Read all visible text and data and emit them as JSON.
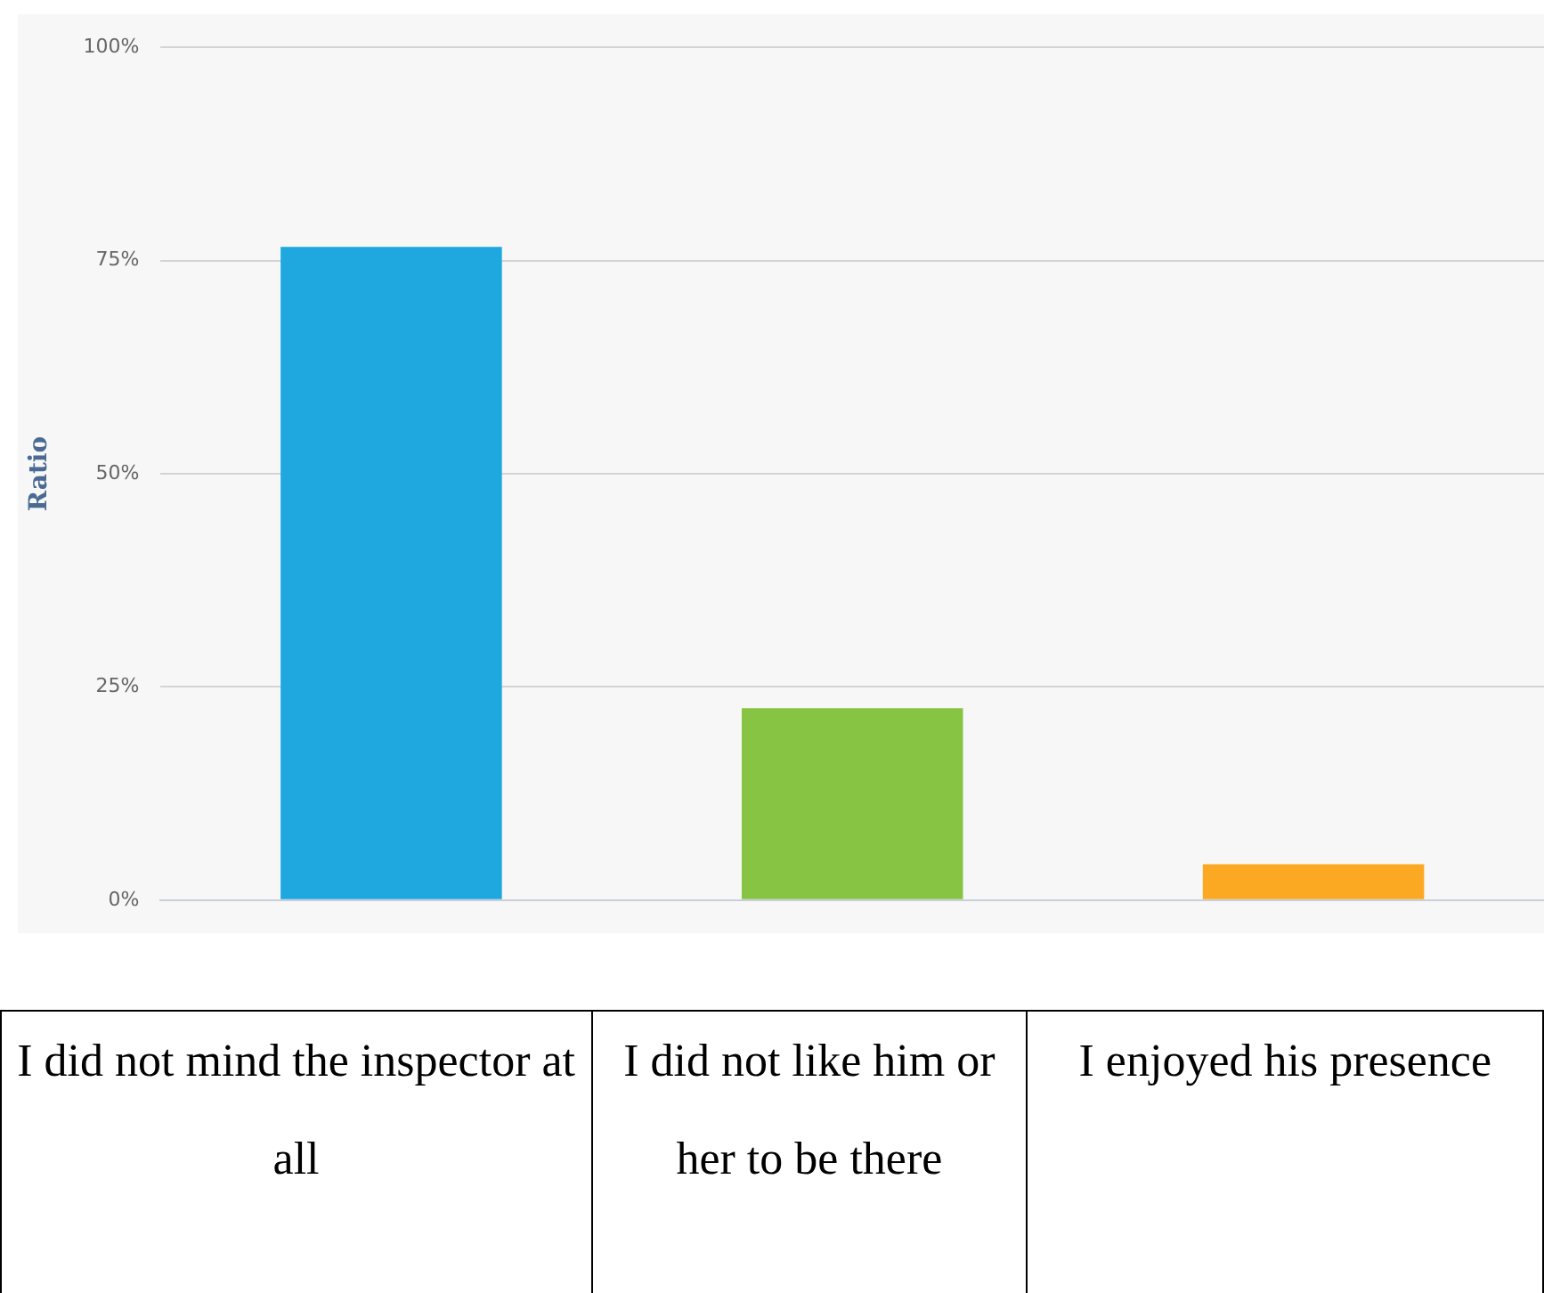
{
  "chart_data": {
    "type": "bar",
    "ylabel": "Ratio",
    "categories": [
      "I did not mind the inspector at all",
      "I did not like him or her to be there",
      "I enjoyed his presence"
    ],
    "values": [
      76.6,
      22.5,
      4.2
    ],
    "colors": [
      "#1fa8e0",
      "#88c444",
      "#fba823"
    ],
    "ylim": [
      0,
      100
    ],
    "yticks": [
      {
        "value": 0,
        "label": "0%"
      },
      {
        "value": 25,
        "label": "25%"
      },
      {
        "value": 50,
        "label": "50%"
      },
      {
        "value": 75,
        "label": "75%"
      },
      {
        "value": 100,
        "label": "100%"
      }
    ],
    "grid": "y",
    "legend": false
  }
}
